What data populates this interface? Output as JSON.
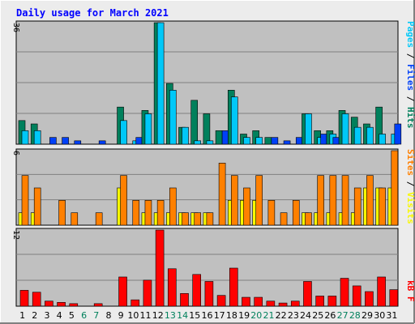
{
  "title": "Daily usage for March 2021",
  "colors": {
    "background": "#ececec",
    "plot": "#c0c0c0",
    "title": "#0000ff",
    "grid": "#808080",
    "hits": "#00805c",
    "files": "#00c8f8",
    "pages": "#0040f8",
    "visits": "#f8f800",
    "sites": "#ff8000",
    "kbytes": "#ff0000",
    "weekday_label": "#000000",
    "weekend_label": "#00805c"
  },
  "legends": {
    "top": [
      {
        "text": "Pages",
        "color": "#00c8f8"
      },
      {
        "text": " / ",
        "color": "#000000"
      },
      {
        "text": "Files",
        "color": "#0040f8"
      },
      {
        "text": " / ",
        "color": "#000000"
      },
      {
        "text": "Hits",
        "color": "#00805c"
      }
    ],
    "middle": [
      {
        "text": "Sites",
        "color": "#ff8000"
      },
      {
        "text": " / ",
        "color": "#000000"
      },
      {
        "text": "Visits",
        "color": "#f8f800"
      }
    ],
    "bottom": [
      {
        "text": "kB F",
        "color": "#ff0000"
      }
    ]
  },
  "chart_data": [
    {
      "type": "bar",
      "name": "hits-files-pages",
      "ymax_label": "36",
      "ylim": [
        0,
        36
      ],
      "categories": [
        "1",
        "2",
        "3",
        "4",
        "5",
        "6",
        "7",
        "8",
        "9",
        "10",
        "11",
        "12",
        "13",
        "14",
        "15",
        "16",
        "17",
        "18",
        "19",
        "20",
        "21",
        "22",
        "23",
        "24",
        "25",
        "26",
        "27",
        "28",
        "29",
        "30",
        "31"
      ],
      "weekend_days": [
        6,
        7,
        13,
        14,
        20,
        21,
        27,
        28
      ],
      "series": [
        {
          "name": "Hits",
          "color_key": "hits",
          "values": [
            7,
            6,
            0,
            0,
            0,
            0,
            0,
            0,
            11,
            0,
            10,
            36,
            18,
            5,
            13,
            9,
            4,
            16,
            3,
            4,
            2,
            0,
            0,
            9,
            4,
            4,
            10,
            8,
            6,
            11,
            0
          ]
        },
        {
          "name": "Files",
          "color_key": "files",
          "values": [
            4,
            4,
            0,
            0,
            0,
            0,
            0,
            0,
            7,
            1,
            9,
            36,
            16,
            5,
            1,
            1,
            0,
            14,
            2,
            2,
            0,
            0,
            0,
            9,
            2,
            3,
            9,
            5,
            5,
            3,
            3
          ]
        },
        {
          "name": "Pages",
          "color_key": "pages",
          "values": [
            0,
            0,
            2,
            2,
            1,
            0,
            1,
            0,
            0,
            2,
            0,
            0,
            0,
            0,
            0,
            0,
            4,
            0,
            0,
            0,
            2,
            1,
            2,
            0,
            3,
            2,
            0,
            0,
            0,
            0,
            6
          ]
        }
      ]
    },
    {
      "type": "bar",
      "name": "visits-sites",
      "ymax_label": "6",
      "ylim": [
        0,
        6
      ],
      "categories": [
        "1",
        "2",
        "3",
        "4",
        "5",
        "6",
        "7",
        "8",
        "9",
        "10",
        "11",
        "12",
        "13",
        "14",
        "15",
        "16",
        "17",
        "18",
        "19",
        "20",
        "21",
        "22",
        "23",
        "24",
        "25",
        "26",
        "27",
        "28",
        "29",
        "30",
        "31"
      ],
      "series": [
        {
          "name": "Visits",
          "color_key": "visits",
          "values": [
            1,
            1,
            0,
            0,
            0,
            0,
            0,
            0,
            3,
            0,
            1,
            1,
            1,
            1,
            1,
            1,
            0,
            2,
            2,
            2,
            0,
            0,
            0,
            1,
            1,
            1,
            1,
            1,
            3,
            3,
            3
          ]
        },
        {
          "name": "Sites",
          "color_key": "sites",
          "values": [
            4,
            3,
            0,
            2,
            1,
            0,
            1,
            0,
            4,
            2,
            2,
            2,
            3,
            1,
            1,
            1,
            5,
            4,
            3,
            4,
            2,
            1,
            2,
            1,
            4,
            4,
            4,
            3,
            4,
            3,
            6
          ]
        }
      ]
    },
    {
      "type": "bar",
      "name": "kbytes",
      "ymax_label": "12",
      "ylim": [
        0,
        12
      ],
      "categories": [
        "1",
        "2",
        "3",
        "4",
        "5",
        "6",
        "7",
        "8",
        "9",
        "10",
        "11",
        "12",
        "13",
        "14",
        "15",
        "16",
        "17",
        "18",
        "19",
        "20",
        "21",
        "22",
        "23",
        "24",
        "25",
        "26",
        "27",
        "28",
        "29",
        "30",
        "31"
      ],
      "series": [
        {
          "name": "KBytes",
          "color_key": "kbytes",
          "values": [
            2.5,
            2.2,
            0.8,
            0.6,
            0.4,
            0,
            0.4,
            0,
            4.6,
            1,
            4.1,
            12,
            5.9,
            2,
            5,
            3.9,
            1.7,
            6,
            1.4,
            1.4,
            0.8,
            0.5,
            0.8,
            3.9,
            1.6,
            1.6,
            4.4,
            3.2,
            2.3,
            4.6,
            2.6
          ]
        }
      ]
    }
  ]
}
